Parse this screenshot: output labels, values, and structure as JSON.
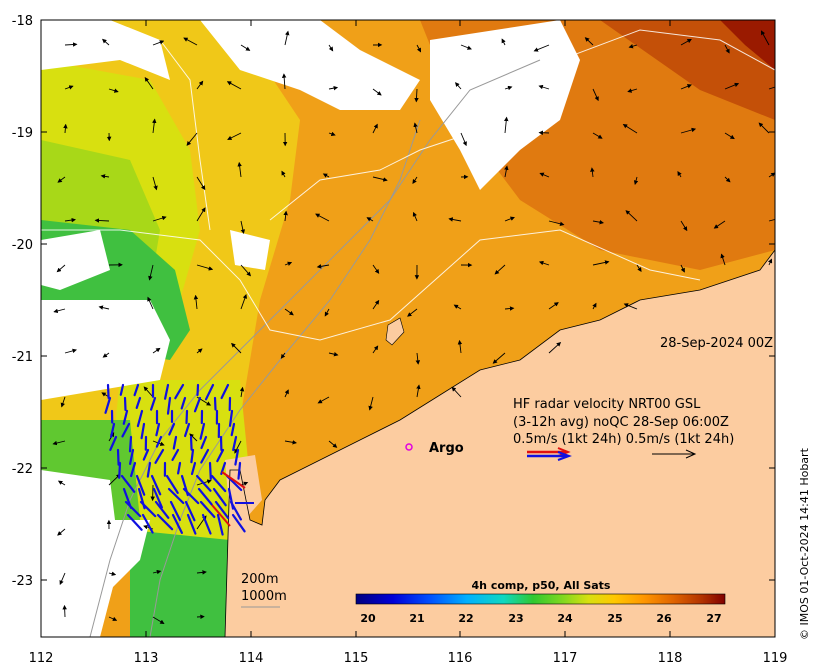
{
  "map": {
    "x_ticks": [
      "112",
      "113",
      "114",
      "115",
      "116",
      "117",
      "118",
      "119"
    ],
    "y_ticks": [
      "-18",
      "-19",
      "-20",
      "-21",
      "-22",
      "-23"
    ],
    "x_range": [
      112,
      119
    ],
    "y_range": [
      -23.5,
      -18
    ]
  },
  "annotations": {
    "date": "28-Sep-2024 00Z",
    "hf_line1": "HF radar velocity  NRT00 GSL",
    "hf_line2": "(3-12h avg) noQC 28-Sep 06:00Z",
    "hf_line3": "0.5m/s (1kt 24h)   0.5m/s (1kt 24h)",
    "argo": "Argo",
    "contour_200": "200m",
    "contour_1000": "1000m",
    "credit": "© IMOS 01-Oct-2024 14:41 Hobart"
  },
  "colorbar": {
    "title": "4h comp, p50, All Sats",
    "ticks": [
      "20",
      "21",
      "22",
      "23",
      "24",
      "25",
      "26",
      "27"
    ],
    "range": [
      19.5,
      27.5
    ],
    "colors": [
      "#00007f",
      "#0000d8",
      "#0050ff",
      "#00b0ff",
      "#10d8c0",
      "#30c830",
      "#80d820",
      "#d8e010",
      "#ffc800",
      "#ff9600",
      "#e06400",
      "#b03000",
      "#800000"
    ]
  },
  "colors": {
    "land": "#fccca0",
    "cloud": "#ffffff",
    "radar_arrow": "#1010e0",
    "radar_scale": "#e01010",
    "argo": "#e000e0"
  }
}
